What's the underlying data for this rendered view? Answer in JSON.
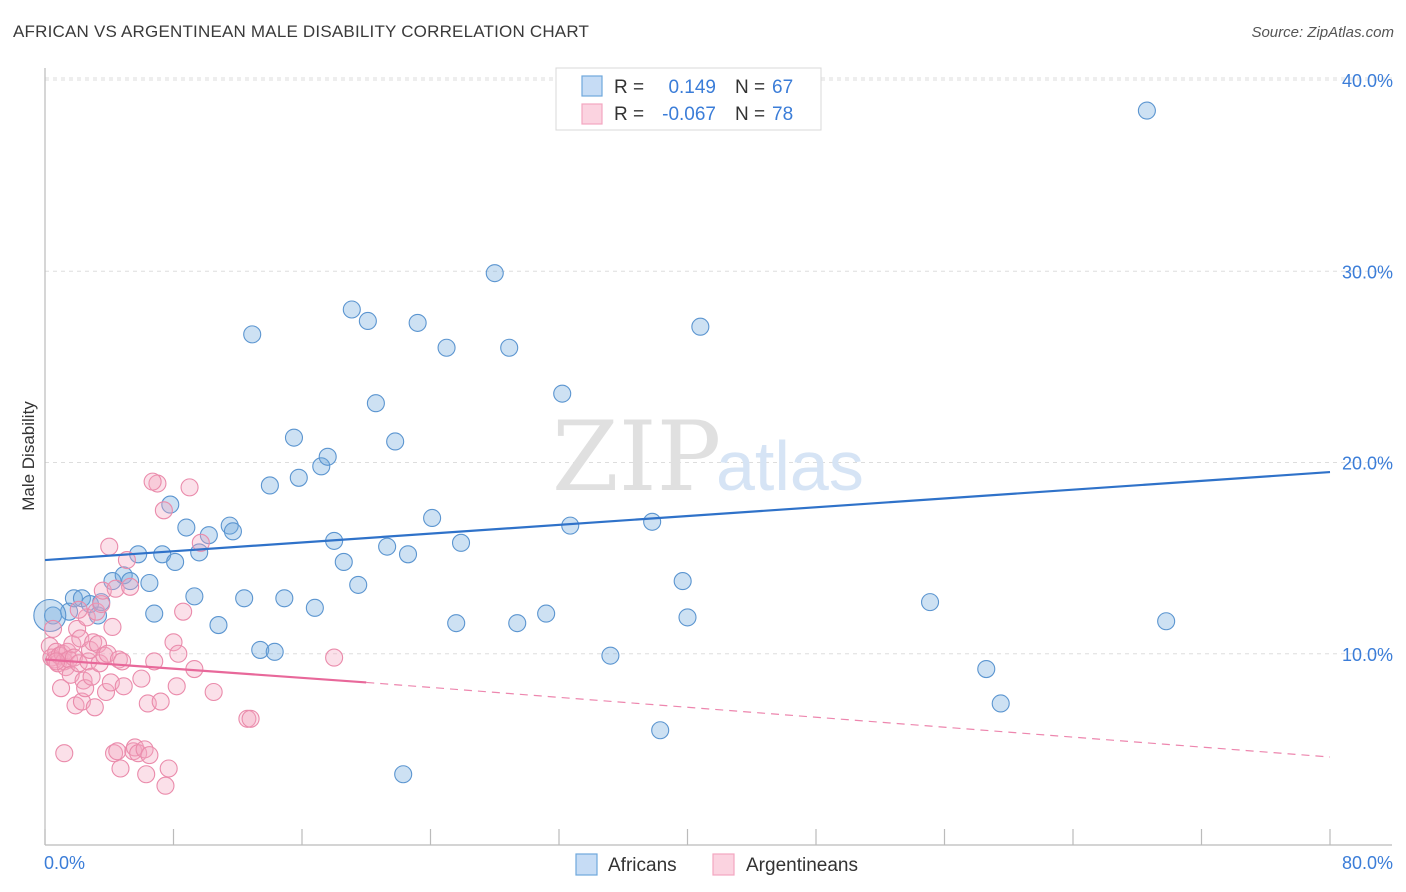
{
  "header": {
    "title": "AFRICAN VS ARGENTINEAN MALE DISABILITY CORRELATION CHART",
    "source": "Source: ZipAtlas.com"
  },
  "watermark": {
    "zip": "ZIP",
    "atlas": "atlas"
  },
  "legend": {
    "r_label": "R =",
    "n_label": "N =",
    "rows": [
      {
        "r": "0.149",
        "n": "67",
        "color": "#6fa8dc"
      },
      {
        "r": "-0.067",
        "n": "78",
        "color": "#f4a6c0"
      }
    ]
  },
  "chart_data": {
    "type": "scatter",
    "title": "AFRICAN VS ARGENTINEAN MALE DISABILITY CORRELATION CHART",
    "xlabel": "",
    "ylabel": "Male Disability",
    "xlim": [
      0,
      80
    ],
    "ylim": [
      0,
      40
    ],
    "x_tick_labels": [
      "0.0%",
      "80.0%"
    ],
    "y_ticks": [
      10,
      20,
      30,
      40
    ],
    "y_tick_labels": [
      "10.0%",
      "20.0%",
      "30.0%",
      "40.0%"
    ],
    "series": [
      {
        "name": "Africans",
        "color": "#6fa8dc",
        "stroke": "#5b95d0",
        "trend": {
          "x": [
            0,
            80
          ],
          "y": [
            14.9,
            19.5
          ],
          "color": "#2f72c9",
          "style": "solid"
        },
        "points": [
          [
            0.5,
            12.0
          ],
          [
            1.5,
            12.2
          ],
          [
            1.8,
            12.9
          ],
          [
            2.3,
            12.9
          ],
          [
            2.8,
            12.6
          ],
          [
            3.3,
            12.0
          ],
          [
            3.5,
            12.7
          ],
          [
            4.2,
            13.8
          ],
          [
            4.9,
            14.1
          ],
          [
            5.3,
            13.8
          ],
          [
            5.8,
            15.2
          ],
          [
            6.5,
            13.7
          ],
          [
            6.8,
            12.1
          ],
          [
            7.3,
            15.2
          ],
          [
            7.8,
            17.8
          ],
          [
            8.1,
            14.8
          ],
          [
            8.8,
            16.6
          ],
          [
            9.3,
            13.0
          ],
          [
            9.6,
            15.3
          ],
          [
            10.2,
            16.2
          ],
          [
            10.8,
            11.5
          ],
          [
            11.5,
            16.7
          ],
          [
            11.7,
            16.4
          ],
          [
            12.4,
            12.9
          ],
          [
            12.9,
            26.7
          ],
          [
            13.4,
            10.2
          ],
          [
            14.0,
            18.8
          ],
          [
            14.3,
            10.1
          ],
          [
            14.9,
            12.9
          ],
          [
            15.5,
            21.3
          ],
          [
            15.8,
            19.2
          ],
          [
            16.8,
            12.4
          ],
          [
            17.2,
            19.8
          ],
          [
            17.6,
            20.3
          ],
          [
            18.0,
            15.9
          ],
          [
            18.6,
            14.8
          ],
          [
            19.1,
            28.0
          ],
          [
            19.5,
            13.6
          ],
          [
            20.1,
            27.4
          ],
          [
            20.6,
            23.1
          ],
          [
            21.3,
            15.6
          ],
          [
            21.8,
            21.1
          ],
          [
            22.6,
            15.2
          ],
          [
            23.2,
            27.3
          ],
          [
            24.1,
            17.1
          ],
          [
            25.0,
            26.0
          ],
          [
            25.6,
            11.6
          ],
          [
            25.9,
            15.8
          ],
          [
            28.0,
            29.9
          ],
          [
            28.9,
            26.0
          ],
          [
            29.4,
            11.6
          ],
          [
            31.2,
            12.1
          ],
          [
            32.2,
            23.6
          ],
          [
            32.7,
            16.7
          ],
          [
            35.2,
            9.9
          ],
          [
            38.3,
            6.0
          ],
          [
            37.8,
            16.9
          ],
          [
            39.7,
            13.8
          ],
          [
            40.0,
            11.9
          ],
          [
            40.8,
            27.1
          ],
          [
            55.1,
            12.7
          ],
          [
            58.6,
            9.2
          ],
          [
            59.5,
            7.4
          ],
          [
            68.6,
            38.4
          ],
          [
            69.8,
            11.7
          ],
          [
            22.3,
            3.7
          ],
          [
            0.3,
            12.0
          ]
        ]
      },
      {
        "name": "Argentineans",
        "color": "#f4a6c0",
        "stroke": "#ea8bab",
        "trend": {
          "x": [
            0,
            20
          ],
          "y": [
            9.7,
            8.5
          ],
          "color": "#e8689a",
          "style": "solid",
          "extension": {
            "x": [
              20,
              80
            ],
            "y": [
              8.5,
              4.6
            ],
            "style": "dashed"
          }
        },
        "points": [
          [
            0.3,
            10.4
          ],
          [
            0.4,
            9.8
          ],
          [
            0.5,
            11.3
          ],
          [
            0.6,
            9.7
          ],
          [
            0.7,
            10.1
          ],
          [
            0.8,
            9.5
          ],
          [
            0.9,
            9.9
          ],
          [
            1.0,
            8.2
          ],
          [
            1.1,
            10.0
          ],
          [
            1.2,
            9.6
          ],
          [
            1.3,
            9.3
          ],
          [
            1.4,
            10.1
          ],
          [
            1.5,
            9.7
          ],
          [
            1.6,
            8.9
          ],
          [
            1.7,
            10.5
          ],
          [
            1.8,
            9.8
          ],
          [
            1.9,
            7.3
          ],
          [
            2.0,
            11.3
          ],
          [
            2.1,
            9.5
          ],
          [
            2.2,
            10.8
          ],
          [
            2.3,
            7.5
          ],
          [
            2.4,
            8.6
          ],
          [
            2.5,
            8.2
          ],
          [
            2.6,
            11.9
          ],
          [
            2.7,
            9.6
          ],
          [
            2.8,
            10.2
          ],
          [
            2.9,
            8.8
          ],
          [
            3.0,
            10.6
          ],
          [
            3.1,
            7.2
          ],
          [
            3.2,
            12.2
          ],
          [
            3.3,
            10.5
          ],
          [
            3.4,
            9.5
          ],
          [
            3.5,
            12.6
          ],
          [
            3.6,
            13.3
          ],
          [
            3.7,
            9.9
          ],
          [
            3.8,
            8.0
          ],
          [
            3.9,
            10.0
          ],
          [
            4.0,
            15.6
          ],
          [
            4.1,
            8.5
          ],
          [
            4.2,
            11.4
          ],
          [
            4.3,
            4.8
          ],
          [
            4.4,
            13.4
          ],
          [
            4.5,
            4.9
          ],
          [
            4.6,
            9.7
          ],
          [
            4.7,
            4.0
          ],
          [
            4.8,
            9.6
          ],
          [
            4.9,
            8.3
          ],
          [
            5.1,
            14.9
          ],
          [
            5.3,
            13.5
          ],
          [
            5.5,
            4.9
          ],
          [
            5.6,
            5.1
          ],
          [
            5.8,
            4.8
          ],
          [
            6.0,
            8.7
          ],
          [
            6.2,
            5.0
          ],
          [
            6.3,
            3.7
          ],
          [
            6.4,
            7.4
          ],
          [
            6.5,
            4.7
          ],
          [
            6.8,
            9.6
          ],
          [
            7.0,
            18.9
          ],
          [
            7.2,
            7.5
          ],
          [
            7.4,
            17.5
          ],
          [
            7.5,
            3.1
          ],
          [
            7.7,
            4.0
          ],
          [
            8.0,
            10.6
          ],
          [
            8.2,
            8.3
          ],
          [
            8.3,
            10.0
          ],
          [
            8.6,
            12.2
          ],
          [
            9.0,
            18.7
          ],
          [
            9.3,
            9.2
          ],
          [
            9.7,
            15.8
          ],
          [
            10.5,
            8.0
          ],
          [
            12.6,
            6.6
          ],
          [
            12.8,
            6.6
          ],
          [
            18.0,
            9.8
          ],
          [
            1.2,
            4.8
          ],
          [
            6.7,
            19.0
          ],
          [
            2.1,
            12.3
          ],
          [
            0.7,
            9.6
          ]
        ]
      }
    ]
  },
  "bottom_legend": {
    "items": [
      "Africans",
      "Argentineans"
    ]
  }
}
